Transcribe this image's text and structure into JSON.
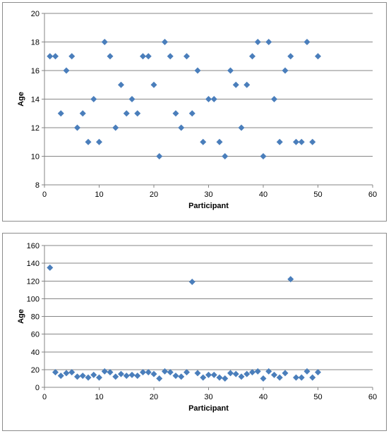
{
  "chart_data": [
    {
      "type": "scatter",
      "title": "",
      "xlabel": "Participant",
      "ylabel": "Age",
      "xlim": [
        0,
        60
      ],
      "ylim": [
        8,
        20
      ],
      "xticks": [
        0,
        10,
        20,
        30,
        40,
        50,
        60
      ],
      "yticks": [
        8,
        10,
        12,
        14,
        16,
        18,
        20
      ],
      "grid": "horizontal",
      "marker": "diamond",
      "color": "#4a7ebb",
      "x": [
        1,
        2,
        3,
        4,
        5,
        6,
        7,
        8,
        9,
        10,
        11,
        12,
        13,
        14,
        15,
        16,
        17,
        18,
        19,
        20,
        21,
        22,
        23,
        24,
        25,
        26,
        27,
        28,
        29,
        30,
        31,
        32,
        33,
        34,
        35,
        36,
        37,
        38,
        39,
        40,
        41,
        42,
        43,
        44,
        45,
        46,
        47,
        48,
        49,
        50
      ],
      "y": [
        17,
        17,
        13,
        16,
        17,
        12,
        13,
        11,
        14,
        11,
        18,
        17,
        12,
        15,
        13,
        14,
        13,
        17,
        17,
        15,
        10,
        18,
        17,
        13,
        12,
        17,
        13,
        16,
        11,
        14,
        14,
        11,
        10,
        16,
        15,
        12,
        15,
        17,
        18,
        10,
        18,
        14,
        11,
        16,
        17,
        11,
        11,
        18,
        11,
        17
      ]
    },
    {
      "type": "scatter",
      "title": "",
      "xlabel": "Participant",
      "ylabel": "Age",
      "xlim": [
        0,
        60
      ],
      "ylim": [
        0,
        160
      ],
      "xticks": [
        0,
        10,
        20,
        30,
        40,
        50,
        60
      ],
      "yticks": [
        0,
        20,
        40,
        60,
        80,
        100,
        120,
        140,
        160
      ],
      "grid": "horizontal",
      "marker": "diamond",
      "color": "#4a7ebb",
      "x": [
        1,
        2,
        3,
        4,
        5,
        6,
        7,
        8,
        9,
        10,
        11,
        12,
        13,
        14,
        15,
        16,
        17,
        18,
        19,
        20,
        21,
        22,
        23,
        24,
        25,
        26,
        27,
        28,
        29,
        30,
        31,
        32,
        33,
        34,
        35,
        36,
        37,
        38,
        39,
        40,
        41,
        42,
        43,
        44,
        45,
        46,
        47,
        48,
        49,
        50
      ],
      "y": [
        135,
        17,
        13,
        16,
        17,
        12,
        13,
        11,
        14,
        11,
        18,
        17,
        12,
        15,
        13,
        14,
        13,
        17,
        17,
        15,
        10,
        18,
        17,
        13,
        12,
        17,
        119,
        16,
        11,
        14,
        14,
        11,
        10,
        16,
        15,
        12,
        15,
        17,
        18,
        10,
        18,
        14,
        11,
        16,
        122,
        11,
        11,
        18,
        11,
        17
      ]
    }
  ]
}
